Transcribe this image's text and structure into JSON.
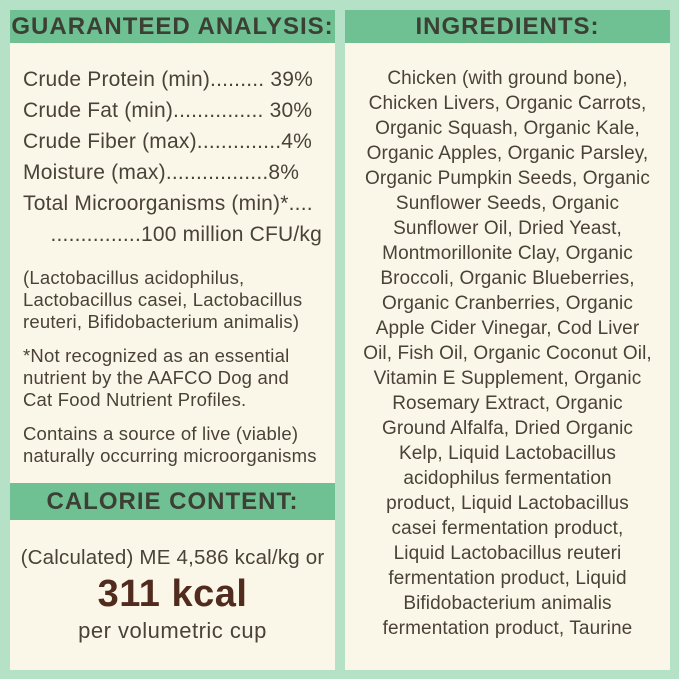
{
  "colors": {
    "background_mint": "#b5e2c6",
    "header_bar_green": "#6fc092",
    "panel_cream": "#fbf7e8",
    "body_text": "#4a4238",
    "header_text": "#3c3f34",
    "kcal_highlight_brown": "#502b1e"
  },
  "guaranteed_analysis": {
    "header": "GUARANTEED ANALYSIS:",
    "rows": [
      {
        "label": "Crude Protein (min)",
        "leader": ".........",
        "value": " 39%"
      },
      {
        "label": "Crude Fat (min)",
        "leader": "...............",
        "value": " 30%"
      },
      {
        "label": "Crude Fiber (max)",
        "leader": "..............",
        "value": "4%"
      },
      {
        "label": "Moisture (max)",
        "leader": ".................",
        "value": "8%"
      },
      {
        "label": "Total Microorganisms (min)*",
        "leader": "....",
        "value": ""
      },
      {
        "label": "",
        "leader": "...............",
        "value": "100 million CFU/kg"
      }
    ],
    "probiotics_note": "(Lactobacillus acidophilus, Lactobacillus casei, Lactobacillus reuteri, Bifidobacterium animalis)",
    "asterisk_note": "*Not recognized as an essential nutrient by the AAFCO Dog and Cat Food Nutrient Profiles.",
    "contains_note": "Contains a source of live (viable) naturally occurring microorganisms"
  },
  "calorie_content": {
    "header": "CALORIE CONTENT:",
    "line1": "(Calculated) ME 4,586 kcal/kg or",
    "kcal": "311 kcal",
    "line2": "per volumetric cup"
  },
  "ingredients": {
    "header": "INGREDIENTS:",
    "lines": [
      "Chicken (with ground bone),",
      "Chicken Livers, Organic Carrots,",
      "Organic Squash, Organic Kale,",
      "Organic Apples, Organic Parsley,",
      "Organic Pumpkin Seeds, Organic",
      "Sunflower Seeds, Organic",
      "Sunflower Oil, Dried Yeast,",
      "Montmorillonite Clay, Organic",
      "Broccoli, Organic Blueberries,",
      "Organic Cranberries, Organic",
      "Apple Cider Vinegar, Cod Liver",
      "Oil, Fish Oil, Organic Coconut Oil,",
      "Vitamin E Supplement, Organic",
      "Rosemary Extract, Organic",
      "Ground Alfalfa, Dried Organic",
      "Kelp, Liquid Lactobacillus",
      "acidophilus fermentation",
      "product, Liquid Lactobacillus",
      "casei fermentation product,",
      "Liquid Lactobacillus reuteri",
      "fermentation product, Liquid",
      "Bifidobacterium animalis",
      "fermentation product, Taurine"
    ]
  }
}
